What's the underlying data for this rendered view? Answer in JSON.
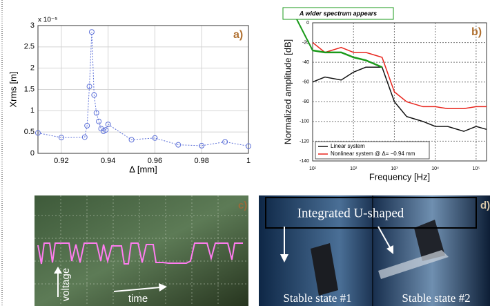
{
  "panel_a": {
    "chart_data": {
      "type": "line",
      "label": "a)",
      "multiplier": "x 10⁻⁵",
      "xlabel": "Δ [mm]",
      "ylabel": "Xrms [m]",
      "x": [
        0.91,
        0.92,
        0.93,
        0.931,
        0.932,
        0.933,
        0.934,
        0.935,
        0.936,
        0.937,
        0.938,
        0.939,
        0.94,
        0.95,
        0.96,
        0.97,
        0.98,
        0.99,
        1.0
      ],
      "values": [
        0.48,
        0.37,
        0.38,
        0.65,
        1.57,
        2.85,
        1.37,
        0.95,
        0.75,
        0.58,
        0.52,
        0.55,
        0.68,
        0.32,
        0.36,
        0.2,
        0.18,
        0.27,
        0.17
      ],
      "color": "#5b6fd8",
      "xlim": [
        0.91,
        1
      ],
      "ylim": [
        0,
        3
      ],
      "xticks": [
        0.92,
        0.94,
        0.96,
        0.98,
        1
      ],
      "yticks": [
        0,
        0.5,
        1,
        1.5,
        2,
        2.5,
        3
      ],
      "grid": true
    }
  },
  "panel_b": {
    "chart_data": {
      "type": "line",
      "label": "b)",
      "xlabel": "Frequency [Hz]",
      "ylabel": "Normalized amplitude [dB]",
      "log_x": true,
      "x": [
        10,
        20,
        50,
        100,
        200,
        500,
        1000,
        2000,
        5000,
        10000,
        20000,
        50000,
        100000,
        180000
      ],
      "series": [
        {
          "name": "Linear system",
          "color": "#111111",
          "values": [
            -60,
            -55,
            -58,
            -50,
            -45,
            -45,
            -80,
            -95,
            -100,
            -105,
            -105,
            -110,
            -105,
            -108
          ]
        },
        {
          "name": "Nonlinear system @ Δ= −0.94 mm",
          "color": "#e8241c",
          "values": [
            -20,
            -30,
            -25,
            -30,
            -30,
            -35,
            -70,
            -80,
            -85,
            -85,
            -87,
            -87,
            -85,
            -85
          ]
        }
      ],
      "annotation": {
        "text": "A wider spectrum appears",
        "color": "#1a9a1a",
        "x": [
          10,
          20,
          50,
          100,
          200,
          500
        ],
        "values": [
          -28,
          -30,
          -30,
          -35,
          -38,
          -45
        ]
      },
      "xlim": [
        10,
        180000
      ],
      "ylim": [
        -140,
        0
      ],
      "xticks": [
        {
          "value": 10,
          "label": "10¹"
        },
        {
          "value": 100,
          "label": "10²"
        },
        {
          "value": 1000,
          "label": "10³"
        },
        {
          "value": 10000,
          "label": "10⁴"
        },
        {
          "value": 100000,
          "label": "10⁵"
        }
      ],
      "yticks": [
        -140,
        -120,
        -100,
        -80,
        -60,
        -40,
        -20,
        0
      ],
      "grid": true,
      "legend": "lower left"
    }
  },
  "panel_c": {
    "label": "c)",
    "y_arrow": "voltage",
    "x_arrow": "time"
  },
  "panel_d": {
    "label": "d)",
    "caption": "Integrated U-shaped",
    "left": "Stable state #1",
    "right": "Stable state #2"
  }
}
